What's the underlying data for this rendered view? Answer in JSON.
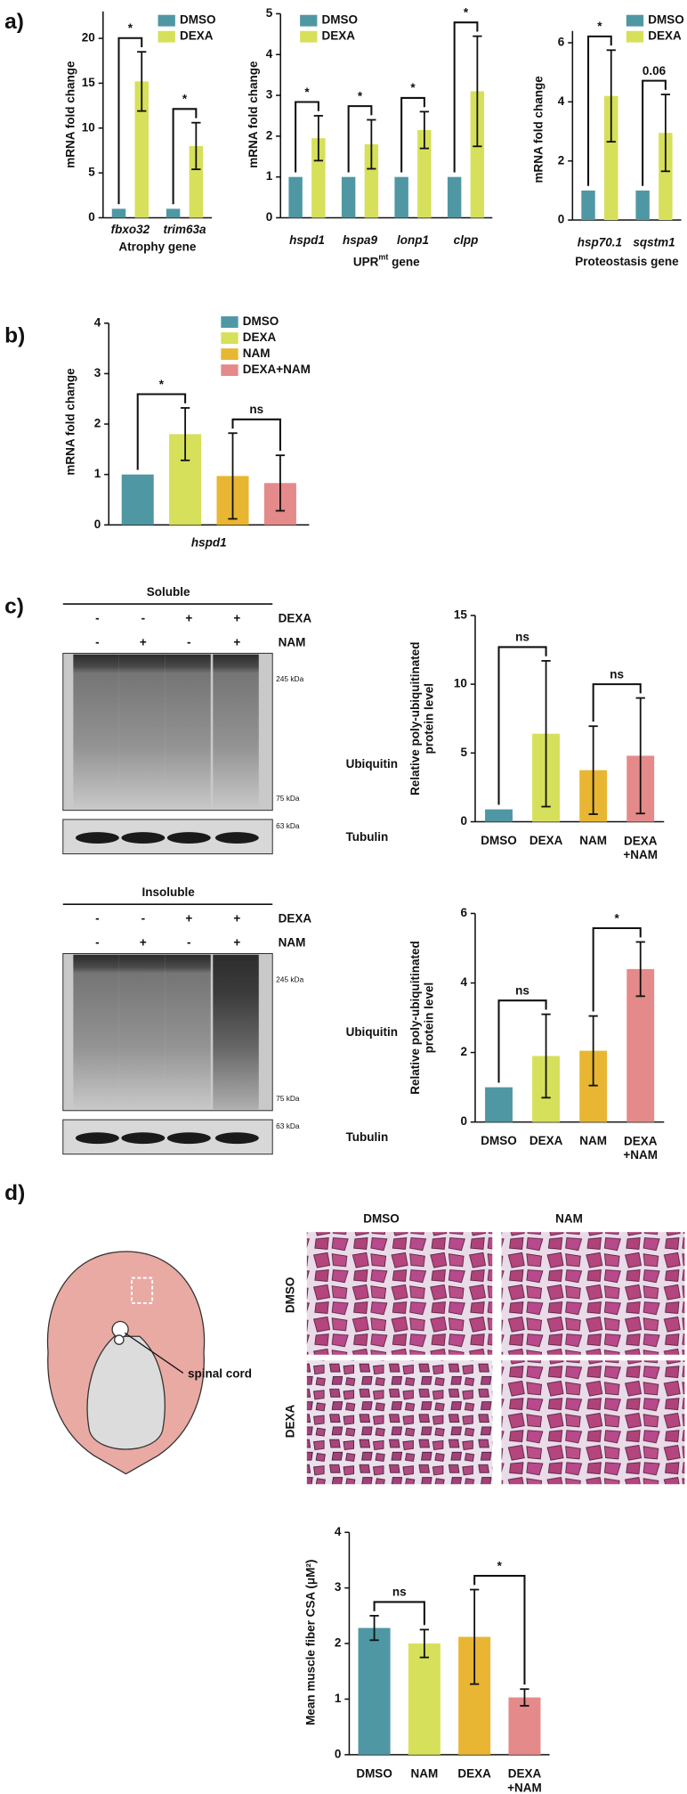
{
  "panels": {
    "labels": [
      "a)",
      "b)",
      "c)",
      "d)"
    ]
  },
  "blots": [
    {
      "title": "Soluble",
      "rows": [
        {
          "name": "DEXA",
          "marks": [
            "-",
            "-",
            "+",
            "+"
          ]
        },
        {
          "name": "NAM",
          "marks": [
            "-",
            "+",
            "-",
            "+"
          ]
        }
      ],
      "markers": [
        "245 kDa",
        "75 kDa"
      ],
      "protein": "Ubiquitin",
      "loading": {
        "marker": "63 kDa",
        "protein": "Tubulin"
      }
    },
    {
      "title": "Insoluble",
      "rows": [
        {
          "name": "DEXA",
          "marks": [
            "-",
            "-",
            "+",
            "+"
          ]
        },
        {
          "name": "NAM",
          "marks": [
            "-",
            "+",
            "-",
            "+"
          ]
        }
      ],
      "markers": [
        "245 kDa",
        "75 kDa"
      ],
      "protein": "Ubiquitin",
      "loading": {
        "marker": "63 kDa",
        "protein": "Tubulin"
      }
    }
  ],
  "histology": {
    "columns": [
      "DMSO",
      "NAM"
    ],
    "rows": [
      "DMSO",
      "DEXA"
    ],
    "schematic_label": "spinal cord"
  },
  "chart_data": [
    {
      "type": "bar",
      "ylabel": "mRNA fold change",
      "xlabel": "Atrophy gene",
      "categories": [
        "fbxo32",
        "trim63a"
      ],
      "series": [
        {
          "name": "DMSO",
          "color": "#4f97a3",
          "values": [
            1,
            1
          ]
        },
        {
          "name": "DEXA",
          "color": "#d6e05a",
          "values": [
            15.2,
            8.0
          ],
          "errors": [
            3.3,
            2.6
          ]
        }
      ],
      "ylim": [
        0,
        23
      ],
      "yticks": [
        0,
        5,
        10,
        15,
        20
      ],
      "legend": "upper right",
      "comparisons": [
        {
          "label": "*",
          "category": "fbxo32"
        },
        {
          "label": "*",
          "category": "trim63a"
        }
      ]
    },
    {
      "type": "bar",
      "ylabel": "mRNA fold change",
      "xlabel": [
        "UPR",
        "mt",
        " gene"
      ],
      "categories": [
        "hspd1",
        "hspa9",
        "lonp1",
        "clpp"
      ],
      "series": [
        {
          "name": "DMSO",
          "color": "#4f97a3",
          "values": [
            1,
            1,
            1,
            1
          ]
        },
        {
          "name": "DEXA",
          "color": "#d6e05a",
          "values": [
            1.95,
            1.8,
            2.15,
            3.1
          ],
          "errors": [
            0.55,
            0.6,
            0.45,
            1.35
          ]
        }
      ],
      "ylim": [
        0,
        5
      ],
      "yticks": [
        0,
        1,
        2,
        3,
        4,
        5
      ],
      "legend": "upper right",
      "comparisons": [
        {
          "label": "*",
          "category": "hspd1"
        },
        {
          "label": "*",
          "category": "hspa9"
        },
        {
          "label": "*",
          "category": "lonp1"
        },
        {
          "label": "*",
          "category": "clpp"
        }
      ]
    },
    {
      "type": "bar",
      "ylabel": "mRNA fold change",
      "xlabel": "Proteostasis gene",
      "categories": [
        "hsp70.1",
        "sqstm1"
      ],
      "series": [
        {
          "name": "DMSO",
          "color": "#4f97a3",
          "values": [
            1,
            1
          ]
        },
        {
          "name": "DEXA",
          "color": "#d6e05a",
          "values": [
            4.2,
            2.95
          ],
          "errors": [
            1.55,
            1.3
          ]
        }
      ],
      "ylim": [
        0,
        6.4
      ],
      "yticks": [
        0,
        2,
        4,
        6
      ],
      "legend": "upper right",
      "comparisons": [
        {
          "label": "*",
          "category": "hsp70.1"
        },
        {
          "label": "0.06",
          "category": "sqstm1"
        }
      ]
    },
    {
      "type": "bar",
      "ylabel": "mRNA fold change",
      "categories": [
        "hspd1"
      ],
      "series": [
        {
          "name": "DMSO",
          "color": "#4f97a3",
          "values": [
            1
          ]
        },
        {
          "name": "DEXA",
          "color": "#d6e05a",
          "values": [
            1.8
          ],
          "errors": [
            0.52
          ]
        },
        {
          "name": "NAM",
          "color": "#e8b632",
          "values": [
            0.97
          ],
          "errors": [
            0.85
          ]
        },
        {
          "name": "DEXA+NAM",
          "color": "#e48a8a",
          "values": [
            0.83
          ],
          "errors": [
            0.55
          ]
        }
      ],
      "ylim": [
        0,
        4
      ],
      "yticks": [
        0,
        1,
        2,
        3,
        4
      ],
      "legend": "upper right",
      "comparisons": [
        {
          "label": "*",
          "between": [
            "DMSO",
            "DEXA"
          ]
        },
        {
          "label": "ns",
          "between": [
            "NAM",
            "DEXA+NAM"
          ]
        }
      ]
    },
    {
      "type": "bar",
      "ylabel": "Relative poly-ubiquitinated\nprotein level",
      "categories": [
        "DMSO",
        "DEXA",
        "NAM",
        "DEXA\n+NAM"
      ],
      "values": [
        0.9,
        6.4,
        3.75,
        4.8
      ],
      "errors": [
        null,
        5.3,
        3.2,
        4.2
      ],
      "colors": [
        "#4f97a3",
        "#d6e05a",
        "#e8b632",
        "#e48a8a"
      ],
      "ylim": [
        0,
        15
      ],
      "yticks": [
        0,
        5,
        10,
        15
      ],
      "comparisons": [
        {
          "label": "ns",
          "between": [
            "DMSO",
            "DEXA"
          ]
        },
        {
          "label": "ns",
          "between": [
            "NAM",
            "DEXA\n+NAM"
          ]
        }
      ]
    },
    {
      "type": "bar",
      "ylabel": "Relative poly-ubiquitinated\nprotein level",
      "categories": [
        "DMSO",
        "DEXA",
        "NAM",
        "DEXA\n+NAM"
      ],
      "values": [
        1,
        1.9,
        2.05,
        4.4
      ],
      "errors": [
        null,
        1.2,
        1.0,
        0.78
      ],
      "colors": [
        "#4f97a3",
        "#d6e05a",
        "#e8b632",
        "#e48a8a"
      ],
      "ylim": [
        0,
        6
      ],
      "yticks": [
        0,
        2,
        4,
        6
      ],
      "comparisons": [
        {
          "label": "ns",
          "between": [
            "DMSO",
            "DEXA"
          ]
        },
        {
          "label": "*",
          "between": [
            "NAM",
            "DEXA\n+NAM"
          ]
        }
      ]
    },
    {
      "type": "bar",
      "ylabel": "Mean muscle fiber CSA (μM²)",
      "categories": [
        "DMSO",
        "NAM",
        "DEXA",
        "DEXA\n+NAM"
      ],
      "values": [
        2.28,
        2.0,
        2.12,
        1.03
      ],
      "errors": [
        0.22,
        0.25,
        0.85,
        0.15
      ],
      "colors": [
        "#4f97a3",
        "#d6e05a",
        "#e8b632",
        "#e48a8a"
      ],
      "ylim": [
        0,
        4
      ],
      "yticks": [
        0,
        1,
        2,
        3,
        4
      ],
      "comparisons": [
        {
          "label": "ns",
          "between": [
            "DMSO",
            "NAM"
          ]
        },
        {
          "label": "*",
          "between": [
            "DEXA",
            "DEXA\n+NAM"
          ]
        }
      ]
    }
  ]
}
